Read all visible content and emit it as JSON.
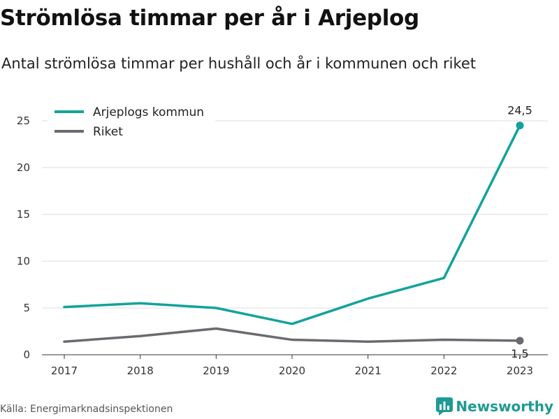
{
  "title": "Strömlösa timmar per år i Arjeplog",
  "subtitle": "Antal strömlösa timmar per hushåll och år i kommunen och riket",
  "source": "Källa: Energimarknadsinspektionen",
  "brand": {
    "name": "Newsworthy",
    "icon": "newsworthy-logo-icon",
    "color": "#1f9a95"
  },
  "chart_data": {
    "type": "line",
    "title": "Strömlösa timmar per år i Arjeplog",
    "subtitle": "Antal strömlösa timmar per hushåll och år i kommunen och riket",
    "x": [
      "2017",
      "2018",
      "2019",
      "2020",
      "2021",
      "2022",
      "2023"
    ],
    "yticks": [
      "0",
      "5",
      "10",
      "15",
      "20",
      "25"
    ],
    "ylim": [
      0,
      27
    ],
    "grid": true,
    "legend": "top-left",
    "series": [
      {
        "name": "Arjeplogs kommun",
        "color": "#12a39a",
        "values": [
          5.1,
          5.5,
          5.0,
          3.3,
          6.0,
          8.2,
          24.5
        ],
        "end_label": "24,5"
      },
      {
        "name": "Riket",
        "color": "#6b6a70",
        "values": [
          1.4,
          2.0,
          2.8,
          1.6,
          1.4,
          1.6,
          1.5
        ],
        "end_label": "1,5"
      }
    ]
  }
}
